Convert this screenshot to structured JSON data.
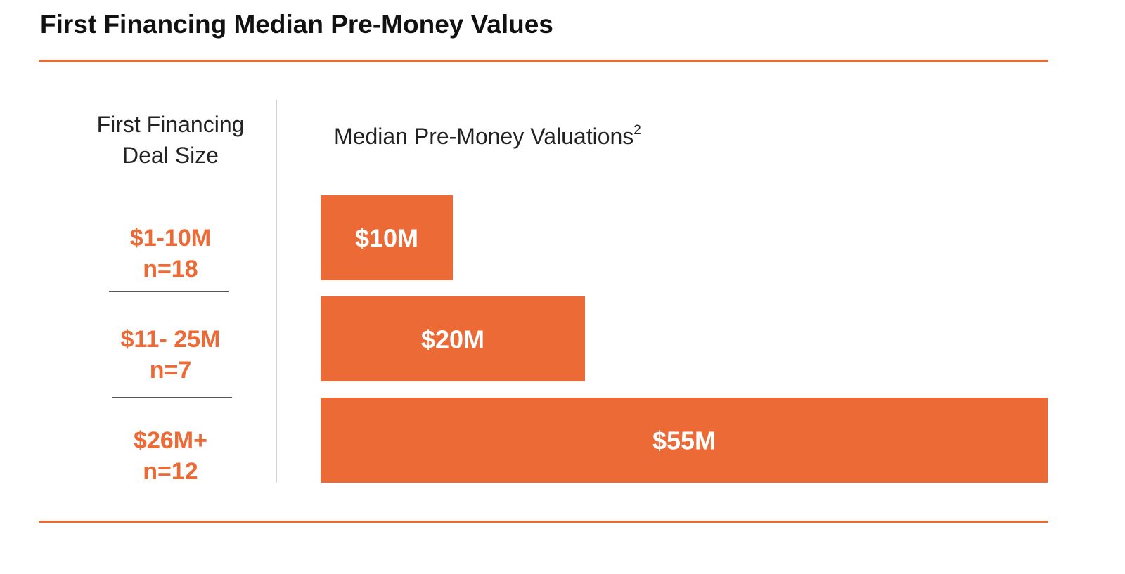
{
  "title": "First Financing Median Pre-Money Values",
  "left_header": {
    "line1": "First Financing",
    "line2": "Deal Size"
  },
  "chart_header": {
    "text": "Median Pre-Money Valuations",
    "footnote": "2"
  },
  "colors": {
    "accent": "#ec6a36",
    "bar": "#ec6a36",
    "bar_label": "#ffffff",
    "text": "#222222"
  },
  "chart_data": {
    "type": "bar",
    "orientation": "horizontal",
    "title": "Median Pre-Money Valuations",
    "categories": [
      {
        "range": "$1-10M",
        "n": "n=18"
      },
      {
        "range": "$11- 25M",
        "n": "n=7"
      },
      {
        "range": "$26M+",
        "n": "n=12"
      }
    ],
    "values": [
      10,
      20,
      55
    ],
    "data_labels": [
      "$10M",
      "$20M",
      "$55M"
    ],
    "unit": "$M",
    "xlim": [
      0,
      55
    ],
    "grid": false,
    "legend": "none"
  }
}
